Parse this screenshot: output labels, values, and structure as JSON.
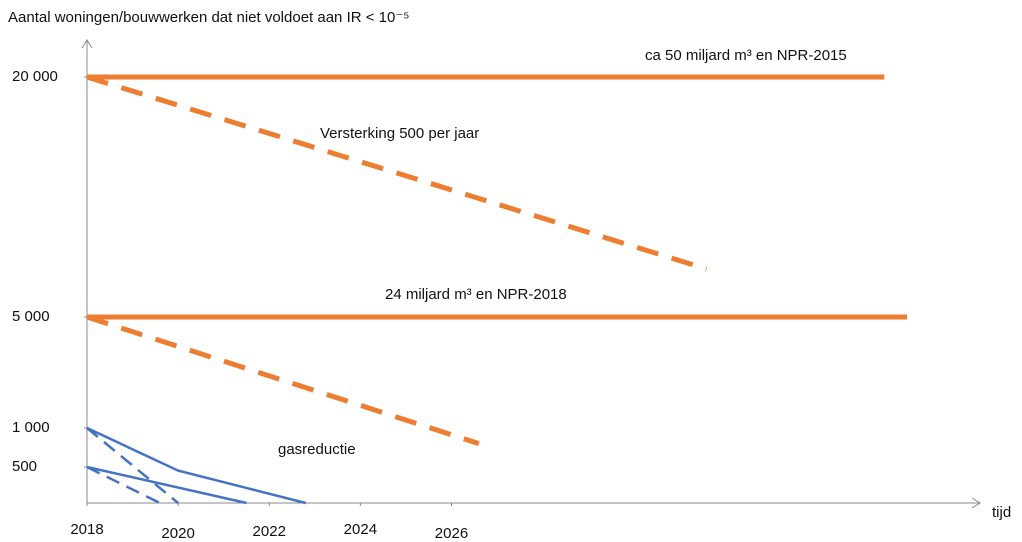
{
  "chart_data": {
    "type": "line",
    "y_label": "Aantal woningen/bouwwerken dat niet voldoet aan IR < 10⁻⁵",
    "x_label": "tijd",
    "xlim": [
      2018,
      2037.6
    ],
    "xticks": [
      2018,
      2020,
      2022,
      2024,
      2026
    ],
    "ylim": [
      0,
      20000
    ],
    "yticks": [
      500,
      {
        "value": 1000,
        "label": "1 000"
      },
      {
        "value": 5000,
        "label": "5 000"
      },
      {
        "value": 20000,
        "label": "20 000"
      }
    ],
    "annotation": "gasreductie",
    "series": [
      {
        "name": "ca 50 miljard m³ en NPR-2015",
        "color": "#ed7d31",
        "style": "solid",
        "x": [
          2018,
          2035.5
        ],
        "values": [
          20000,
          20000
        ]
      },
      {
        "name": "Versterking 500 per jaar",
        "color": "#ed7d31",
        "style": "dashed",
        "x": [
          2018,
          2031.6
        ],
        "values": [
          20000,
          8000
        ]
      },
      {
        "name": "24 miljard m³ en NPR-2018",
        "color": "#ed7d31",
        "style": "solid",
        "x": [
          2018,
          2036
        ],
        "values": [
          5000,
          5000
        ]
      },
      {
        "color": "#ed7d31",
        "style": "dashed",
        "x": [
          2018,
          2026.6
        ],
        "values": [
          5000,
          800
        ]
      },
      {
        "color": "#4472c4",
        "style": "solid",
        "x": [
          2018,
          2020,
          2022.8
        ],
        "values": [
          1000,
          450,
          0
        ]
      },
      {
        "color": "#4472c4",
        "style": "solid",
        "x": [
          2018,
          2021.5
        ],
        "values": [
          500,
          0
        ]
      },
      {
        "color": "#4472c4",
        "style": "dashed",
        "x": [
          2018,
          2020
        ],
        "values": [
          1000,
          0
        ]
      },
      {
        "color": "#4472c4",
        "style": "dashed",
        "x": [
          2018,
          2019.6
        ],
        "values": [
          500,
          0
        ]
      }
    ]
  }
}
